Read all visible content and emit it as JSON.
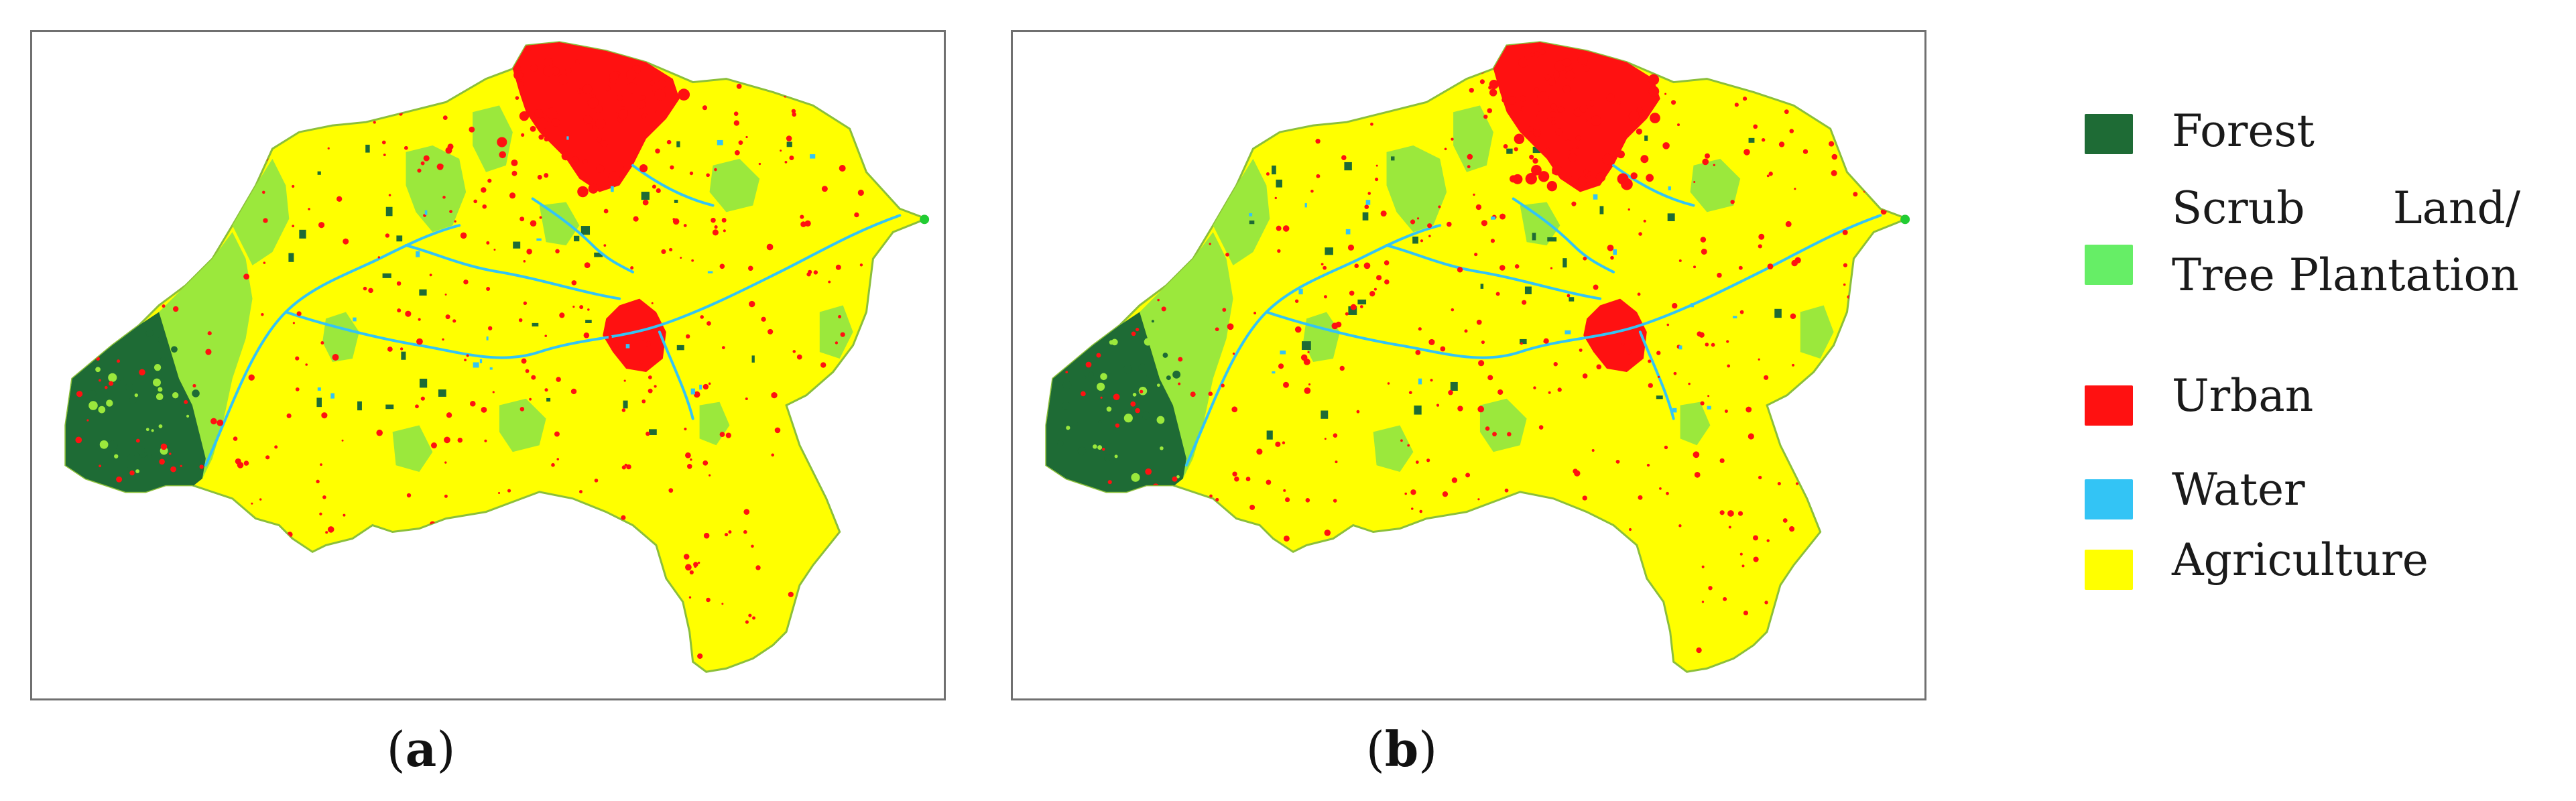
{
  "panels": [
    {
      "id": "a",
      "caption_letter": "a",
      "caption_open": "(",
      "caption_close": ")"
    },
    {
      "id": "b",
      "caption_letter": "b",
      "caption_open": "(",
      "caption_close": ")"
    }
  ],
  "legend": {
    "items": [
      {
        "key": "forest",
        "label": "Forest",
        "color": "#1e6b35"
      },
      {
        "key": "scrub",
        "label_part1": "Scrub",
        "label_part2": "Land/",
        "label_line2": "Tree Plantation",
        "color": "#66ee66"
      },
      {
        "key": "urban",
        "label": "Urban",
        "color": "#ff1111"
      },
      {
        "key": "water",
        "label": "Water",
        "color": "#33c4f5"
      },
      {
        "key": "agriculture",
        "label": "Agriculture",
        "color": "#ffff00"
      }
    ]
  },
  "map_colors": {
    "forest": "#1e6b35",
    "scrub": "#9be83c",
    "urban": "#ff1111",
    "water": "#33c4f5",
    "agriculture": "#ffff00",
    "outline": "#8bbf3a"
  }
}
